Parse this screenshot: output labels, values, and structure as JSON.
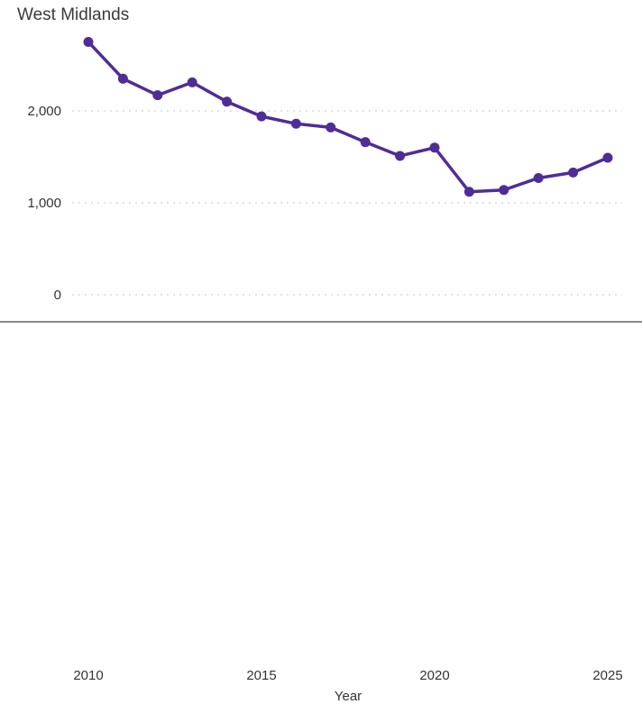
{
  "chart_data": {
    "type": "line",
    "title": "West Midlands",
    "xlabel": "Year",
    "ylabel": "",
    "x_ticks": [
      "2010",
      "2015",
      "2020",
      "2025"
    ],
    "y_ticks": [
      "0",
      "1,000",
      "2,000"
    ],
    "ylim": [
      0,
      2800
    ],
    "xlim": [
      2010,
      2025
    ],
    "grid": true,
    "series": [
      {
        "color": "#4f2d96",
        "x": [
          2010,
          2011,
          2012,
          2013,
          2014,
          2015,
          2016,
          2017,
          2018,
          2019,
          2020,
          2021,
          2022,
          2023,
          2024,
          2025
        ],
        "values": [
          2750,
          2350,
          2170,
          2310,
          2100,
          1940,
          1860,
          1820,
          1660,
          1510,
          1600,
          1120,
          1140,
          1270,
          1330,
          1490
        ]
      }
    ]
  }
}
